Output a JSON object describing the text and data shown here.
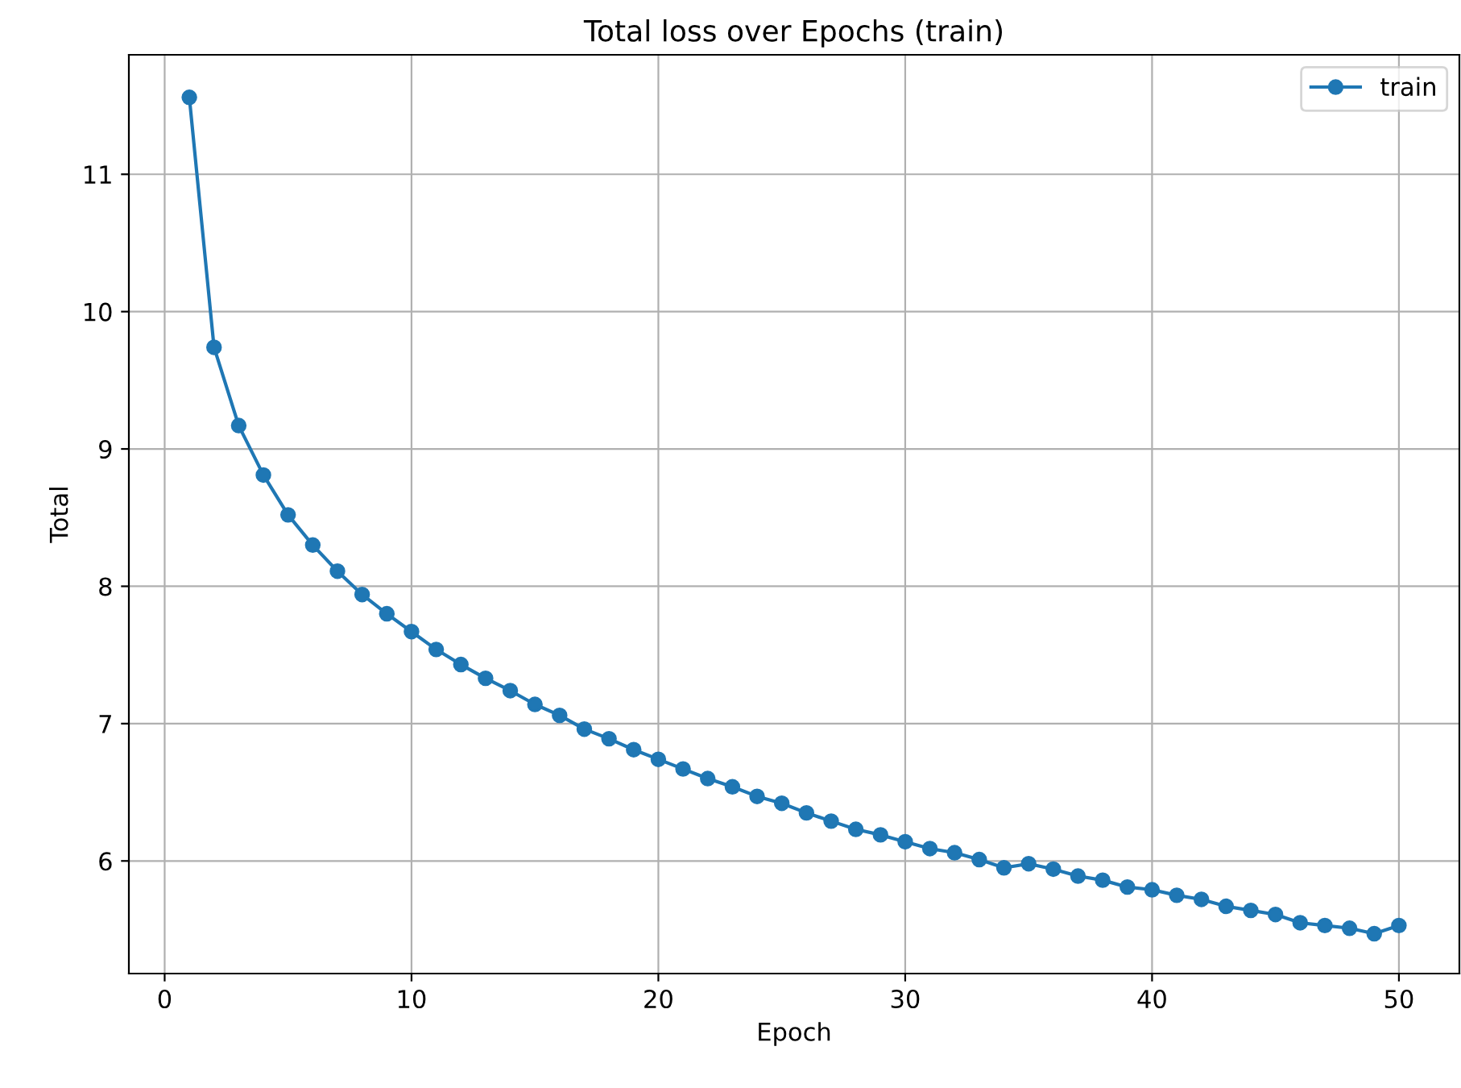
{
  "chart_data": {
    "type": "line",
    "title": "Total loss over Epochs (train)",
    "xlabel": "Epoch",
    "ylabel": "Total",
    "x": [
      1,
      2,
      3,
      4,
      5,
      6,
      7,
      8,
      9,
      10,
      11,
      12,
      13,
      14,
      15,
      16,
      17,
      18,
      19,
      20,
      21,
      22,
      23,
      24,
      25,
      26,
      27,
      28,
      29,
      30,
      31,
      32,
      33,
      34,
      35,
      36,
      37,
      38,
      39,
      40,
      41,
      42,
      43,
      44,
      45,
      46,
      47,
      48,
      49,
      50
    ],
    "series": [
      {
        "name": "train",
        "color": "#1f77b4",
        "values": [
          11.56,
          9.74,
          9.17,
          8.81,
          8.52,
          8.3,
          8.11,
          7.94,
          7.8,
          7.67,
          7.54,
          7.43,
          7.33,
          7.24,
          7.14,
          7.06,
          6.96,
          6.89,
          6.81,
          6.74,
          6.67,
          6.6,
          6.54,
          6.47,
          6.42,
          6.35,
          6.29,
          6.23,
          6.19,
          6.14,
          6.09,
          6.06,
          6.01,
          5.95,
          5.98,
          5.94,
          5.89,
          5.86,
          5.81,
          5.79,
          5.75,
          5.72,
          5.67,
          5.64,
          5.61,
          5.55,
          5.53,
          5.51,
          5.47,
          5.53
        ]
      }
    ],
    "xlim": [
      -1.45,
      52.45
    ],
    "ylim": [
      5.18,
      11.87
    ],
    "xticks": [
      0,
      10,
      20,
      30,
      40,
      50
    ],
    "yticks": [
      6,
      7,
      8,
      9,
      10,
      11
    ],
    "grid": true,
    "legend": "top right",
    "marker": "circle",
    "line_style": "solid"
  }
}
